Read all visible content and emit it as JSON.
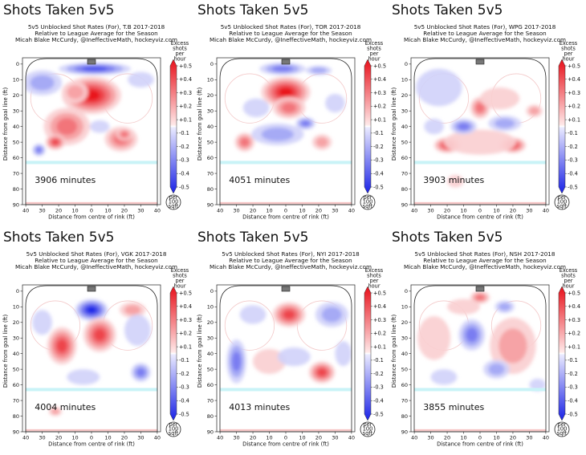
{
  "page": {
    "big_title": "Shots Taken 5v5",
    "subtitle_line2": "Relative to League Average for the Season",
    "subtitle_line3": "Micah Blake McCurdy, @IneffectiveMath, hockeyviz.com",
    "xlabel": "Distance from centre of rink (ft)",
    "ylabel": "Distance from goal line (ft)",
    "cbar_title": [
      "Excess",
      "shots",
      "per",
      "hour"
    ],
    "cbar_ticks": [
      "+0.5",
      "+0.4",
      "+0.3",
      "+0.2",
      "+0.1",
      "-0.1",
      "-0.2",
      "-0.3",
      "-0.4",
      "-0.5"
    ],
    "per_badge": [
      "per",
      "100",
      "sqft"
    ],
    "colors": {
      "red": "#e8101a",
      "blue": "#1a22e6",
      "ice_line": "#c9f3f7",
      "board_line": "#f7c6c6"
    }
  },
  "chart_data": [
    {
      "type": "heatmap",
      "title": "5v5 Unblocked Shot Rates (For), T.B 2017-2018",
      "team": "T.B",
      "minutes": "3906 minutes",
      "x_ticks": [
        40,
        30,
        20,
        10,
        0,
        10,
        20,
        30,
        40
      ],
      "y_ticks": [
        0,
        10,
        20,
        30,
        40,
        50,
        60,
        70,
        80,
        90
      ],
      "xlim": [
        -42,
        42
      ],
      "ylim": [
        90,
        -3
      ],
      "value_range": [
        -0.5,
        0.5
      ],
      "blobs": [
        {
          "x": 2,
          "y": 3,
          "rx": 22,
          "ry": 4,
          "v": -0.42
        },
        {
          "x": 0,
          "y": 20,
          "rx": 18,
          "ry": 12,
          "v": 0.45
        },
        {
          "x": -10,
          "y": 18,
          "rx": 8,
          "ry": 7,
          "v": 0.2
        },
        {
          "x": -15,
          "y": 40,
          "rx": 14,
          "ry": 12,
          "v": 0.25
        },
        {
          "x": -22,
          "y": 50,
          "rx": 6,
          "ry": 5,
          "v": 0.42
        },
        {
          "x": 18,
          "y": 48,
          "rx": 10,
          "ry": 8,
          "v": 0.25
        },
        {
          "x": 20,
          "y": 45,
          "rx": 5,
          "ry": 4,
          "v": 0.35
        },
        {
          "x": -32,
          "y": 55,
          "rx": 4,
          "ry": 4,
          "v": -0.35
        },
        {
          "x": -30,
          "y": 12,
          "rx": 12,
          "ry": 8,
          "v": -0.2
        },
        {
          "x": 30,
          "y": 10,
          "rx": 8,
          "ry": 5,
          "v": -0.15
        },
        {
          "x": 5,
          "y": 40,
          "rx": 6,
          "ry": 4,
          "v": -0.15
        }
      ]
    },
    {
      "type": "heatmap",
      "title": "5v5 Unblocked Shot Rates (For), TOR 2017-2018",
      "team": "TOR",
      "minutes": "4051 minutes",
      "x_ticks": [
        40,
        30,
        20,
        10,
        0,
        10,
        20,
        30,
        40
      ],
      "y_ticks": [
        0,
        10,
        20,
        30,
        40,
        50,
        60,
        70,
        80,
        90
      ],
      "xlim": [
        -42,
        42
      ],
      "ylim": [
        90,
        -3
      ],
      "value_range": [
        -0.5,
        0.5
      ],
      "blobs": [
        {
          "x": -2,
          "y": 3,
          "rx": 14,
          "ry": 4,
          "v": -0.35
        },
        {
          "x": 20,
          "y": 4,
          "rx": 8,
          "ry": 3,
          "v": -0.2
        },
        {
          "x": 0,
          "y": 18,
          "rx": 15,
          "ry": 10,
          "v": 0.47
        },
        {
          "x": 2,
          "y": 28,
          "rx": 10,
          "ry": 7,
          "v": 0.25
        },
        {
          "x": -18,
          "y": 28,
          "rx": 8,
          "ry": 6,
          "v": -0.15
        },
        {
          "x": -25,
          "y": 50,
          "rx": 6,
          "ry": 6,
          "v": 0.25
        },
        {
          "x": 22,
          "y": 50,
          "rx": 6,
          "ry": 5,
          "v": 0.22
        },
        {
          "x": -5,
          "y": 45,
          "rx": 16,
          "ry": 7,
          "v": -0.2
        },
        {
          "x": 12,
          "y": 38,
          "rx": 6,
          "ry": 4,
          "v": -0.3
        },
        {
          "x": 30,
          "y": 25,
          "rx": 6,
          "ry": 6,
          "v": -0.15
        }
      ]
    },
    {
      "type": "heatmap",
      "title": "5v5 Unblocked Shot Rates (For), WPG 2017-2018",
      "team": "WPG",
      "minutes": "3903 minutes",
      "x_ticks": [
        40,
        30,
        20,
        10,
        0,
        10,
        20,
        30,
        40
      ],
      "y_ticks": [
        0,
        10,
        20,
        30,
        40,
        50,
        60,
        70,
        80,
        90
      ],
      "xlim": [
        -42,
        42
      ],
      "ylim": [
        90,
        -3
      ],
      "value_range": [
        -0.5,
        0.5
      ],
      "blobs": [
        {
          "x": 0,
          "y": 28,
          "rx": 6,
          "ry": 7,
          "v": 0.35
        },
        {
          "x": 12,
          "y": 22,
          "rx": 12,
          "ry": 7,
          "v": 0.15
        },
        {
          "x": -20,
          "y": 52,
          "rx": 8,
          "ry": 5,
          "v": 0.42
        },
        {
          "x": 20,
          "y": 52,
          "rx": 8,
          "ry": 5,
          "v": 0.42
        },
        {
          "x": 0,
          "y": 50,
          "rx": 22,
          "ry": 8,
          "v": 0.15
        },
        {
          "x": -10,
          "y": 40,
          "rx": 8,
          "ry": 5,
          "v": -0.25
        },
        {
          "x": 15,
          "y": 38,
          "rx": 10,
          "ry": 5,
          "v": -0.2
        },
        {
          "x": -25,
          "y": 15,
          "rx": 14,
          "ry": 12,
          "v": -0.15
        },
        {
          "x": -28,
          "y": 40,
          "rx": 6,
          "ry": 5,
          "v": -0.15
        },
        {
          "x": 33,
          "y": 30,
          "rx": 5,
          "ry": 4,
          "v": 0.2
        },
        {
          "x": -15,
          "y": 75,
          "rx": 5,
          "ry": 4,
          "v": 0.15
        }
      ]
    },
    {
      "type": "heatmap",
      "title": "5v5 Unblocked Shot Rates (For), VGK 2017-2018",
      "team": "VGK",
      "minutes": "4004 minutes",
      "x_ticks": [
        40,
        30,
        20,
        10,
        0,
        10,
        20,
        30,
        40
      ],
      "y_ticks": [
        0,
        10,
        20,
        30,
        40,
        50,
        60,
        70,
        80,
        90
      ],
      "xlim": [
        -42,
        42
      ],
      "ylim": [
        90,
        -3
      ],
      "value_range": [
        -0.5,
        0.5
      ],
      "blobs": [
        {
          "x": 0,
          "y": 12,
          "rx": 10,
          "ry": 7,
          "v": -0.45
        },
        {
          "x": -18,
          "y": 35,
          "rx": 9,
          "ry": 12,
          "v": 0.38
        },
        {
          "x": 5,
          "y": 28,
          "rx": 10,
          "ry": 11,
          "v": 0.4
        },
        {
          "x": 25,
          "y": 12,
          "rx": 8,
          "ry": 5,
          "v": 0.2
        },
        {
          "x": 30,
          "y": 52,
          "rx": 6,
          "ry": 6,
          "v": -0.35
        },
        {
          "x": 28,
          "y": 25,
          "rx": 8,
          "ry": 10,
          "v": -0.15
        },
        {
          "x": -30,
          "y": 20,
          "rx": 6,
          "ry": 8,
          "v": -0.15
        },
        {
          "x": -5,
          "y": 55,
          "rx": 10,
          "ry": 5,
          "v": -0.15
        },
        {
          "x": -22,
          "y": 77,
          "rx": 4,
          "ry": 3,
          "v": 0.2
        }
      ]
    },
    {
      "type": "heatmap",
      "title": "5v5 Unblocked Shot Rates (For), NYI 2017-2018",
      "team": "NYI",
      "minutes": "4013 minutes",
      "x_ticks": [
        40,
        30,
        20,
        10,
        0,
        10,
        20,
        30,
        40
      ],
      "y_ticks": [
        0,
        10,
        20,
        30,
        40,
        50,
        60,
        70,
        80,
        90
      ],
      "xlim": [
        -42,
        42
      ],
      "ylim": [
        90,
        -3
      ],
      "value_range": [
        -0.5,
        0.5
      ],
      "blobs": [
        {
          "x": 2,
          "y": 15,
          "rx": 10,
          "ry": 8,
          "v": 0.42
        },
        {
          "x": 22,
          "y": 52,
          "rx": 8,
          "ry": 7,
          "v": 0.4
        },
        {
          "x": -30,
          "y": 45,
          "rx": 6,
          "ry": 14,
          "v": -0.25
        },
        {
          "x": 28,
          "y": 15,
          "rx": 10,
          "ry": 8,
          "v": -0.2
        },
        {
          "x": -20,
          "y": 15,
          "rx": 8,
          "ry": 6,
          "v": -0.15
        },
        {
          "x": -10,
          "y": 45,
          "rx": 10,
          "ry": 8,
          "v": 0.15
        },
        {
          "x": 5,
          "y": 42,
          "rx": 10,
          "ry": 6,
          "v": -0.15
        },
        {
          "x": 35,
          "y": 40,
          "rx": 5,
          "ry": 8,
          "v": -0.15
        }
      ]
    },
    {
      "type": "heatmap",
      "title": "5v5 Unblocked Shot Rates (For), NSH 2017-2018",
      "team": "NSH",
      "minutes": "3855 minutes",
      "x_ticks": [
        40,
        30,
        20,
        10,
        0,
        10,
        20,
        30,
        40
      ],
      "y_ticks": [
        0,
        10,
        20,
        30,
        40,
        50,
        60,
        70,
        80,
        90
      ],
      "xlim": [
        -42,
        42
      ],
      "ylim": [
        90,
        -3
      ],
      "value_range": [
        -0.5,
        0.5
      ],
      "blobs": [
        {
          "x": 0,
          "y": 4,
          "rx": 6,
          "ry": 4,
          "v": 0.35
        },
        {
          "x": -5,
          "y": 28,
          "rx": 8,
          "ry": 10,
          "v": -0.25
        },
        {
          "x": 20,
          "y": 35,
          "rx": 14,
          "ry": 18,
          "v": 0.2
        },
        {
          "x": -28,
          "y": 30,
          "rx": 10,
          "ry": 14,
          "v": 0.15
        },
        {
          "x": 10,
          "y": 50,
          "rx": 8,
          "ry": 6,
          "v": -0.2
        },
        {
          "x": 15,
          "y": 10,
          "rx": 6,
          "ry": 4,
          "v": -0.2
        },
        {
          "x": -10,
          "y": 10,
          "rx": 10,
          "ry": 5,
          "v": 0.15
        },
        {
          "x": 35,
          "y": 60,
          "rx": 5,
          "ry": 4,
          "v": -0.15
        },
        {
          "x": -22,
          "y": 55,
          "rx": 8,
          "ry": 5,
          "v": -0.15
        }
      ]
    }
  ]
}
